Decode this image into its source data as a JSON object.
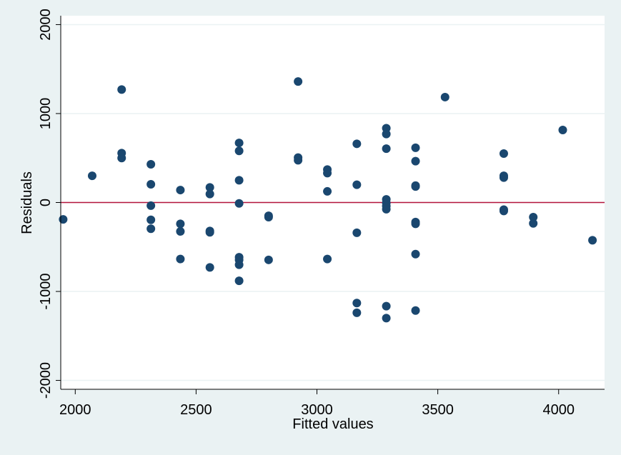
{
  "chart_data": {
    "type": "scatter",
    "title": "",
    "xlabel": "Fitted values",
    "ylabel": "Residuals",
    "xlim": [
      1940,
      4190
    ],
    "ylim": [
      -2100,
      2100
    ],
    "xticks": [
      2000,
      2500,
      3000,
      3500,
      4000
    ],
    "yticks": [
      -2000,
      -1000,
      0,
      1000,
      2000
    ],
    "grid": "horizontal",
    "reference_line": {
      "y": 0,
      "color": "#b3143c"
    },
    "marker_color": "#1a476f",
    "points": [
      {
        "x": 1950,
        "y": -190
      },
      {
        "x": 2070,
        "y": 300
      },
      {
        "x": 2192,
        "y": 1270
      },
      {
        "x": 2192,
        "y": 555
      },
      {
        "x": 2192,
        "y": 500
      },
      {
        "x": 2313,
        "y": 430
      },
      {
        "x": 2313,
        "y": 205
      },
      {
        "x": 2313,
        "y": -35
      },
      {
        "x": 2313,
        "y": -195
      },
      {
        "x": 2313,
        "y": -295
      },
      {
        "x": 2435,
        "y": 140
      },
      {
        "x": 2435,
        "y": -240
      },
      {
        "x": 2435,
        "y": -325
      },
      {
        "x": 2435,
        "y": -635
      },
      {
        "x": 2557,
        "y": 170
      },
      {
        "x": 2557,
        "y": 95
      },
      {
        "x": 2557,
        "y": -320
      },
      {
        "x": 2557,
        "y": -335
      },
      {
        "x": 2557,
        "y": -730
      },
      {
        "x": 2678,
        "y": 670
      },
      {
        "x": 2678,
        "y": 580
      },
      {
        "x": 2678,
        "y": 250
      },
      {
        "x": 2678,
        "y": -10
      },
      {
        "x": 2678,
        "y": -615
      },
      {
        "x": 2678,
        "y": -645
      },
      {
        "x": 2678,
        "y": -700
      },
      {
        "x": 2678,
        "y": -880
      },
      {
        "x": 2800,
        "y": -150
      },
      {
        "x": 2800,
        "y": -165
      },
      {
        "x": 2800,
        "y": -645
      },
      {
        "x": 2922,
        "y": 1360
      },
      {
        "x": 2922,
        "y": 505
      },
      {
        "x": 2922,
        "y": 475
      },
      {
        "x": 3043,
        "y": 370
      },
      {
        "x": 3043,
        "y": 330
      },
      {
        "x": 3043,
        "y": 125
      },
      {
        "x": 3043,
        "y": -635
      },
      {
        "x": 3165,
        "y": 660
      },
      {
        "x": 3165,
        "y": 200
      },
      {
        "x": 3165,
        "y": -340
      },
      {
        "x": 3165,
        "y": -1130
      },
      {
        "x": 3165,
        "y": -1240
      },
      {
        "x": 3287,
        "y": 835
      },
      {
        "x": 3287,
        "y": 770
      },
      {
        "x": 3287,
        "y": 605
      },
      {
        "x": 3287,
        "y": 35
      },
      {
        "x": 3287,
        "y": -5
      },
      {
        "x": 3287,
        "y": -40
      },
      {
        "x": 3287,
        "y": -75
      },
      {
        "x": 3287,
        "y": -1165
      },
      {
        "x": 3287,
        "y": -1300
      },
      {
        "x": 3408,
        "y": 615
      },
      {
        "x": 3408,
        "y": 465
      },
      {
        "x": 3408,
        "y": 190
      },
      {
        "x": 3408,
        "y": 180
      },
      {
        "x": 3408,
        "y": -220
      },
      {
        "x": 3408,
        "y": -240
      },
      {
        "x": 3408,
        "y": -580
      },
      {
        "x": 3408,
        "y": -1215
      },
      {
        "x": 3530,
        "y": 1185
      },
      {
        "x": 3773,
        "y": 550
      },
      {
        "x": 3773,
        "y": 300
      },
      {
        "x": 3773,
        "y": 280
      },
      {
        "x": 3773,
        "y": -80
      },
      {
        "x": 3773,
        "y": -95
      },
      {
        "x": 3895,
        "y": -165
      },
      {
        "x": 3895,
        "y": -235
      },
      {
        "x": 4017,
        "y": 815
      },
      {
        "x": 4140,
        "y": -425
      }
    ]
  }
}
